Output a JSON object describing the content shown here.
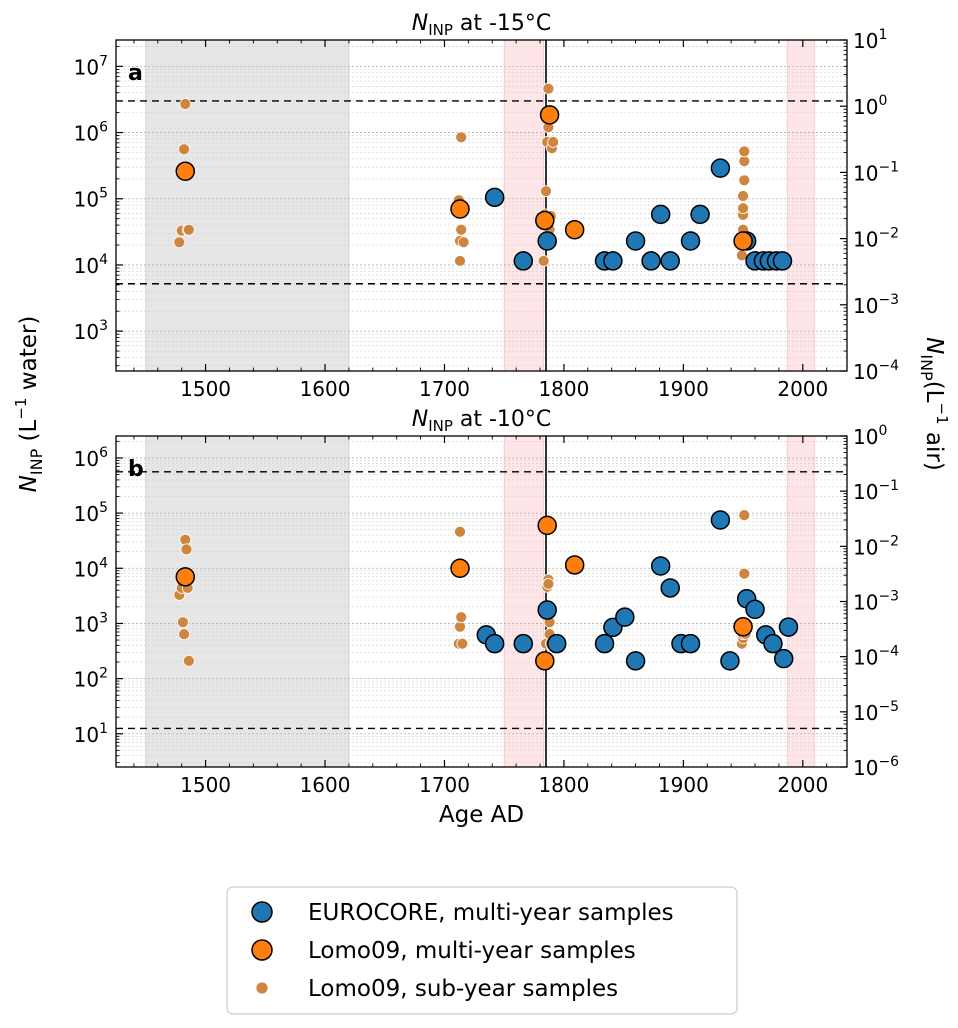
{
  "colors": {
    "eurocore": "#1f77b4",
    "lomo_multi": "#ff7f0e",
    "lomo_sub": "#cd853f",
    "gray_band": "#e6e6e6",
    "pink_band": "#fde5e8",
    "edge": "#000000"
  },
  "axes": {
    "xlabel": "Age AD",
    "ylabel_left": {
      "sym": "N",
      "sub": "INP",
      "rest": " (L",
      "sup": "−1",
      "end": " water)"
    },
    "ylabel_right": {
      "sym": "N",
      "sub": "INP",
      "rest": "(L",
      "sup": "−1",
      "end": " air)"
    }
  },
  "legend": {
    "items": [
      {
        "label": "EUROCORE, multi-year samples",
        "color": "#1f77b4",
        "size": "large"
      },
      {
        "label": "Lomo09, multi-year samples",
        "color": "#ff7f0e",
        "size": "large"
      },
      {
        "label": "Lomo09, sub-year samples",
        "color": "#cd853f",
        "size": "small"
      }
    ]
  },
  "chart_data": [
    {
      "type": "scatter",
      "panel_label": "a",
      "title": {
        "sym": "N",
        "sub": "INP",
        "rest": " at -15°C"
      },
      "xlim": [
        1425,
        2037
      ],
      "ylim": [
        250,
        25000000
      ],
      "yscale": "log",
      "x_ticks": [
        1500,
        1600,
        1700,
        1800,
        1900,
        2000
      ],
      "x_tick_labels": [
        "1500",
        "1600",
        "1700",
        "1800",
        "1900",
        "2000"
      ],
      "y_ticks": [
        {
          "base": "10",
          "exp": "3",
          "v": 1000
        },
        {
          "base": "10",
          "exp": "4",
          "v": 10000
        },
        {
          "base": "10",
          "exp": "5",
          "v": 100000
        },
        {
          "base": "10",
          "exp": "6",
          "v": 1000000
        },
        {
          "base": "10",
          "exp": "7",
          "v": 10000000
        }
      ],
      "right_ylim": [
        0.0001,
        10
      ],
      "right_y_ticks": [
        {
          "base": "10",
          "exp": "−4",
          "v": 0.0001
        },
        {
          "base": "10",
          "exp": "−3",
          "v": 0.001
        },
        {
          "base": "10",
          "exp": "−2",
          "v": 0.01
        },
        {
          "base": "10",
          "exp": "−1",
          "v": 0.1
        },
        {
          "base": "10",
          "exp": "0",
          "v": 1
        },
        {
          "base": "10",
          "exp": "1",
          "v": 10
        }
      ],
      "dashed_lines": [
        3000000,
        5200
      ],
      "vertical_line": 1785,
      "shaded_regions": [
        {
          "x0": 1450,
          "x1": 1620,
          "kind": "gray"
        },
        {
          "x0": 1750,
          "x1": 1783,
          "kind": "pink"
        },
        {
          "x0": 1987,
          "x1": 2010,
          "kind": "pink"
        }
      ],
      "series": [
        {
          "name": "EUROCORE, multi-year samples",
          "kind": "eurocore",
          "x": [
            1742,
            1766,
            1786,
            1834,
            1841,
            1860,
            1873,
            1881,
            1889,
            1906,
            1914,
            1931,
            1953,
            1960,
            1967,
            1972,
            1978,
            1983
          ],
          "y": [
            105000,
            11500,
            23000,
            11500,
            11500,
            23000,
            11500,
            58000,
            11500,
            23000,
            58000,
            290000,
            23000,
            11500,
            11500,
            11500,
            11500,
            11500
          ]
        },
        {
          "name": "Lomo09, multi-year samples",
          "kind": "lomo_multi",
          "x": [
            1483,
            1713,
            1784,
            1788,
            1809,
            1950
          ],
          "y": [
            260000,
            70000,
            47000,
            1850000,
            34000,
            23000
          ]
        },
        {
          "name": "Lomo09, sub-year samples",
          "kind": "lomo_sub",
          "x": [
            1478,
            1480,
            1481,
            1482,
            1483,
            1484,
            1485,
            1486,
            1712,
            1713,
            1713,
            1714,
            1714,
            1715,
            1716,
            1783,
            1784,
            1785,
            1786,
            1787,
            1787,
            1788,
            1789,
            1790,
            1791,
            1949,
            1949,
            1950,
            1950,
            1950,
            1950,
            1951,
            1951,
            1951,
            1952
          ],
          "y": [
            22000,
            33000,
            230000,
            560000,
            2700000,
            260000,
            34000,
            34000,
            95000,
            23000,
            11500,
            34000,
            850000,
            60000,
            22000,
            11500,
            58000,
            130000,
            720000,
            4600000,
            1200000,
            34000,
            55000,
            580000,
            720000,
            14000,
            25000,
            34000,
            57000,
            72000,
            110000,
            190000,
            370000,
            520000,
            22000
          ]
        }
      ]
    },
    {
      "type": "scatter",
      "panel_label": "b",
      "title": {
        "sym": "N",
        "sub": "INP",
        "rest": " at -10°C"
      },
      "xlim": [
        1425,
        2037
      ],
      "ylim": [
        2.5,
        2500000
      ],
      "yscale": "log",
      "x_ticks": [
        1500,
        1600,
        1700,
        1800,
        1900,
        2000
      ],
      "x_tick_labels": [
        "1500",
        "1600",
        "1700",
        "1800",
        "1900",
        "2000"
      ],
      "y_ticks": [
        {
          "base": "10",
          "exp": "1",
          "v": 10
        },
        {
          "base": "10",
          "exp": "2",
          "v": 100
        },
        {
          "base": "10",
          "exp": "3",
          "v": 1000
        },
        {
          "base": "10",
          "exp": "4",
          "v": 10000
        },
        {
          "base": "10",
          "exp": "5",
          "v": 100000
        },
        {
          "base": "10",
          "exp": "6",
          "v": 1000000
        }
      ],
      "right_ylim": [
        1e-06,
        1
      ],
      "right_y_ticks": [
        {
          "base": "10",
          "exp": "−6",
          "v": 1e-06
        },
        {
          "base": "10",
          "exp": "−5",
          "v": 1e-05
        },
        {
          "base": "10",
          "exp": "−4",
          "v": 0.0001
        },
        {
          "base": "10",
          "exp": "−3",
          "v": 0.001
        },
        {
          "base": "10",
          "exp": "−2",
          "v": 0.01
        },
        {
          "base": "10",
          "exp": "−1",
          "v": 0.1
        },
        {
          "base": "10",
          "exp": "0",
          "v": 1
        }
      ],
      "dashed_lines": [
        560000,
        12.5
      ],
      "vertical_line": 1785,
      "shaded_regions": [
        {
          "x0": 1450,
          "x1": 1620,
          "kind": "gray"
        },
        {
          "x0": 1750,
          "x1": 1783,
          "kind": "pink"
        },
        {
          "x0": 1987,
          "x1": 2010,
          "kind": "pink"
        }
      ],
      "series": [
        {
          "name": "EUROCORE, multi-year samples",
          "kind": "eurocore",
          "x": [
            1735,
            1742,
            1766,
            1786,
            1794,
            1834,
            1841,
            1851,
            1860,
            1881,
            1889,
            1898,
            1906,
            1931,
            1939,
            1953,
            1960,
            1969,
            1975,
            1984,
            1988
          ],
          "y": [
            620,
            430,
            430,
            1750,
            430,
            430,
            850,
            1300,
            210,
            11000,
            4400,
            430,
            430,
            75000,
            210,
            2800,
            1800,
            620,
            430,
            230,
            860
          ]
        },
        {
          "name": "Lomo09, multi-year samples",
          "kind": "lomo_multi",
          "x": [
            1483,
            1713,
            1784,
            1786,
            1809,
            1950
          ],
          "y": [
            7000,
            10000,
            210,
            60000,
            11500,
            870
          ]
        },
        {
          "name": "Lomo09, sub-year samples",
          "kind": "lomo_sub",
          "x": [
            1478,
            1480,
            1481,
            1482,
            1483,
            1484,
            1485,
            1486,
            1712,
            1713,
            1713,
            1714,
            1715,
            1785,
            1786,
            1787,
            1787,
            1788,
            1788,
            1789,
            1949,
            1950,
            1950,
            1950,
            1951,
            1951,
            1952
          ],
          "y": [
            3300,
            4400,
            1050,
            640,
            33000,
            22000,
            4400,
            210,
            430,
            870,
            46000,
            1300,
            430,
            430,
            4600,
            6200,
            5200,
            640,
            1050,
            430,
            430,
            540,
            640,
            1000,
            8000,
            92000,
            650
          ]
        }
      ]
    }
  ]
}
